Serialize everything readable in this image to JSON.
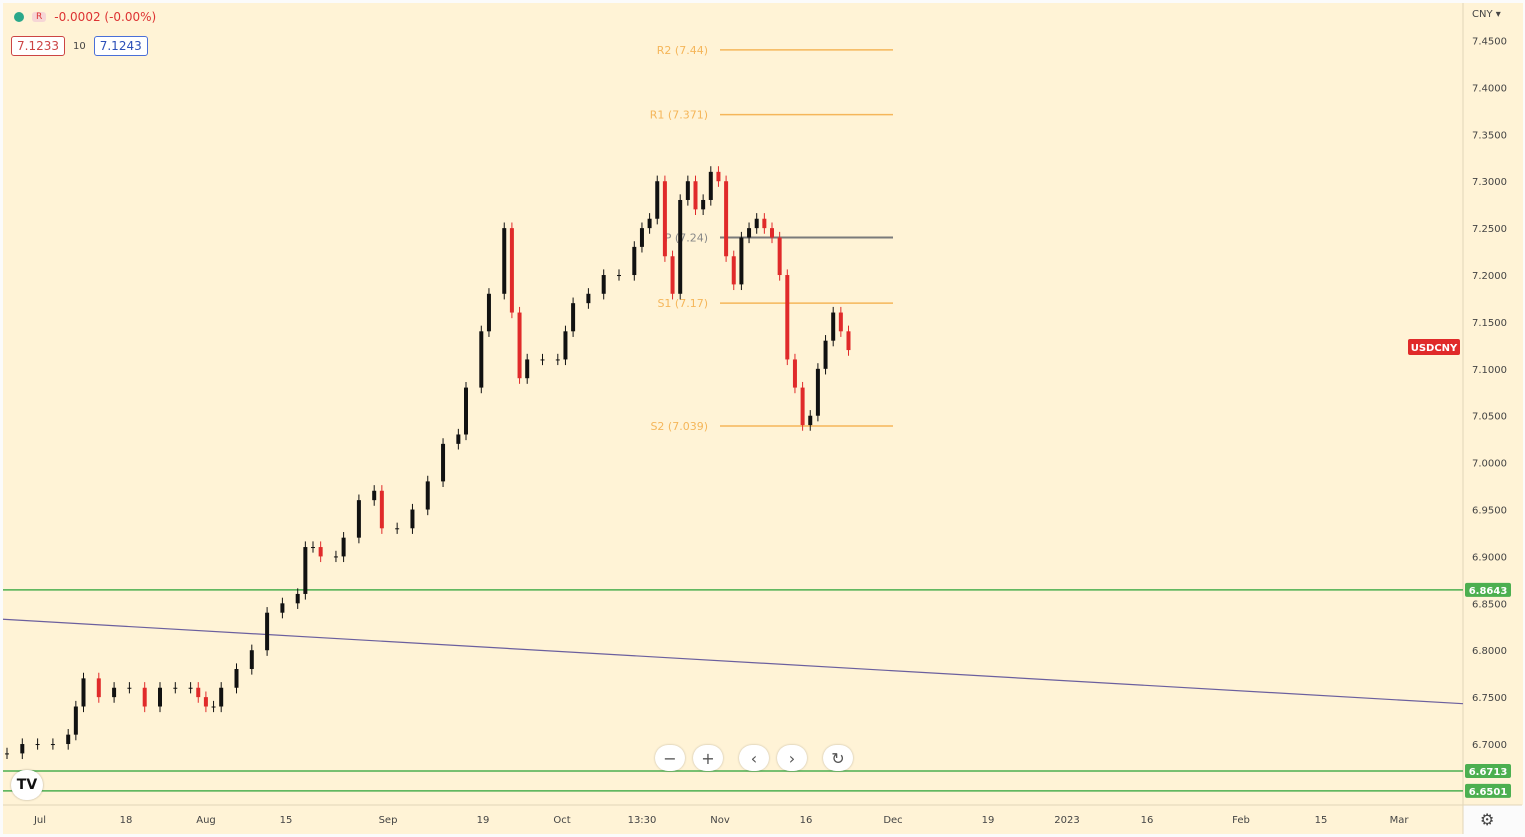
{
  "header": {
    "change": "-0.0002 (-0.00%)",
    "badge": "R",
    "bid": "7.1233",
    "spread": "10",
    "ask": "7.1243"
  },
  "currency_menu": "CNY ▾",
  "zoom_controls": [
    "−",
    "+",
    "‹",
    "›",
    "↻"
  ],
  "logo": "TV",
  "settings_icon": "gear-icon",
  "colors": {
    "background": "#fff3d6",
    "up": "#111111",
    "down": "#e02a2a",
    "pivot": "#f5b65a",
    "green": "#4caf50",
    "trend": "#6b5f9e"
  },
  "chart_data": {
    "type": "candlestick",
    "symbol": "USDCNY",
    "last_price": 7.1233,
    "ylim": [
      6.635,
      7.49
    ],
    "y_ticks": [
      "7.4500",
      "7.4000",
      "7.3500",
      "7.3000",
      "7.2500",
      "7.2000",
      "7.1500",
      "7.1000",
      "7.0500",
      "7.0000",
      "6.9500",
      "6.9000",
      "6.8500",
      "6.8000",
      "6.7500",
      "6.7000"
    ],
    "x_ticks": [
      "Jul",
      "18",
      "Aug",
      "15",
      "Sep",
      "19",
      "Oct",
      "13:30",
      "Nov",
      "16",
      "Dec",
      "19",
      "2023",
      "16",
      "Feb",
      "15",
      "Mar"
    ],
    "pivot_levels": [
      {
        "label": "R2 (7.44)",
        "value": 7.44
      },
      {
        "label": "R1 (7.371)",
        "value": 7.371
      },
      {
        "label": "P (7.24)",
        "value": 7.24
      },
      {
        "label": "S1 (7.17)",
        "value": 7.17
      },
      {
        "label": "S2 (7.039)",
        "value": 7.039
      }
    ],
    "horizontal_lines": [
      {
        "label": "6.8643",
        "value": 6.8643
      },
      {
        "label": "6.6713",
        "value": 6.6713
      },
      {
        "label": "6.6501",
        "value": 6.6501
      }
    ],
    "trendline": {
      "start": 6.833,
      "end": 6.743
    },
    "price_path": [
      [
        0,
        6.69
      ],
      [
        2,
        6.7
      ],
      [
        4,
        6.7
      ],
      [
        6,
        6.7
      ],
      [
        8,
        6.71
      ],
      [
        9,
        6.74
      ],
      [
        10,
        6.77
      ],
      [
        12,
        6.75
      ],
      [
        14,
        6.76
      ],
      [
        16,
        6.76
      ],
      [
        18,
        6.74
      ],
      [
        20,
        6.76
      ],
      [
        22,
        6.76
      ],
      [
        24,
        6.76
      ],
      [
        25,
        6.75
      ],
      [
        26,
        6.74
      ],
      [
        27,
        6.74
      ],
      [
        28,
        6.76
      ],
      [
        30,
        6.78
      ],
      [
        32,
        6.8
      ],
      [
        34,
        6.84
      ],
      [
        36,
        6.85
      ],
      [
        38,
        6.86
      ],
      [
        39,
        6.91
      ],
      [
        40,
        6.91
      ],
      [
        41,
        6.9
      ],
      [
        43,
        6.9
      ],
      [
        44,
        6.92
      ],
      [
        46,
        6.96
      ],
      [
        48,
        6.97
      ],
      [
        49,
        6.93
      ],
      [
        51,
        6.93
      ],
      [
        53,
        6.95
      ],
      [
        55,
        6.98
      ],
      [
        57,
        7.02
      ],
      [
        59,
        7.03
      ],
      [
        60,
        7.08
      ],
      [
        62,
        7.14
      ],
      [
        63,
        7.18
      ],
      [
        65,
        7.25
      ],
      [
        66,
        7.16
      ],
      [
        67,
        7.09
      ],
      [
        68,
        7.11
      ],
      [
        70,
        7.11
      ],
      [
        72,
        7.11
      ],
      [
        73,
        7.14
      ],
      [
        74,
        7.17
      ],
      [
        76,
        7.18
      ],
      [
        78,
        7.2
      ],
      [
        80,
        7.2
      ],
      [
        82,
        7.23
      ],
      [
        83,
        7.25
      ],
      [
        84,
        7.26
      ],
      [
        85,
        7.3
      ],
      [
        86,
        7.22
      ],
      [
        87,
        7.18
      ],
      [
        88,
        7.28
      ],
      [
        89,
        7.3
      ],
      [
        90,
        7.27
      ],
      [
        91,
        7.28
      ],
      [
        92,
        7.31
      ],
      [
        93,
        7.3
      ],
      [
        94,
        7.22
      ],
      [
        95,
        7.19
      ],
      [
        96,
        7.24
      ],
      [
        97,
        7.25
      ],
      [
        98,
        7.26
      ],
      [
        99,
        7.25
      ],
      [
        100,
        7.24
      ],
      [
        101,
        7.2
      ],
      [
        102,
        7.11
      ],
      [
        103,
        7.08
      ],
      [
        104,
        7.04
      ],
      [
        105,
        7.05
      ],
      [
        106,
        7.1
      ],
      [
        107,
        7.13
      ],
      [
        108,
        7.16
      ],
      [
        109,
        7.14
      ],
      [
        110,
        7.12
      ]
    ]
  }
}
